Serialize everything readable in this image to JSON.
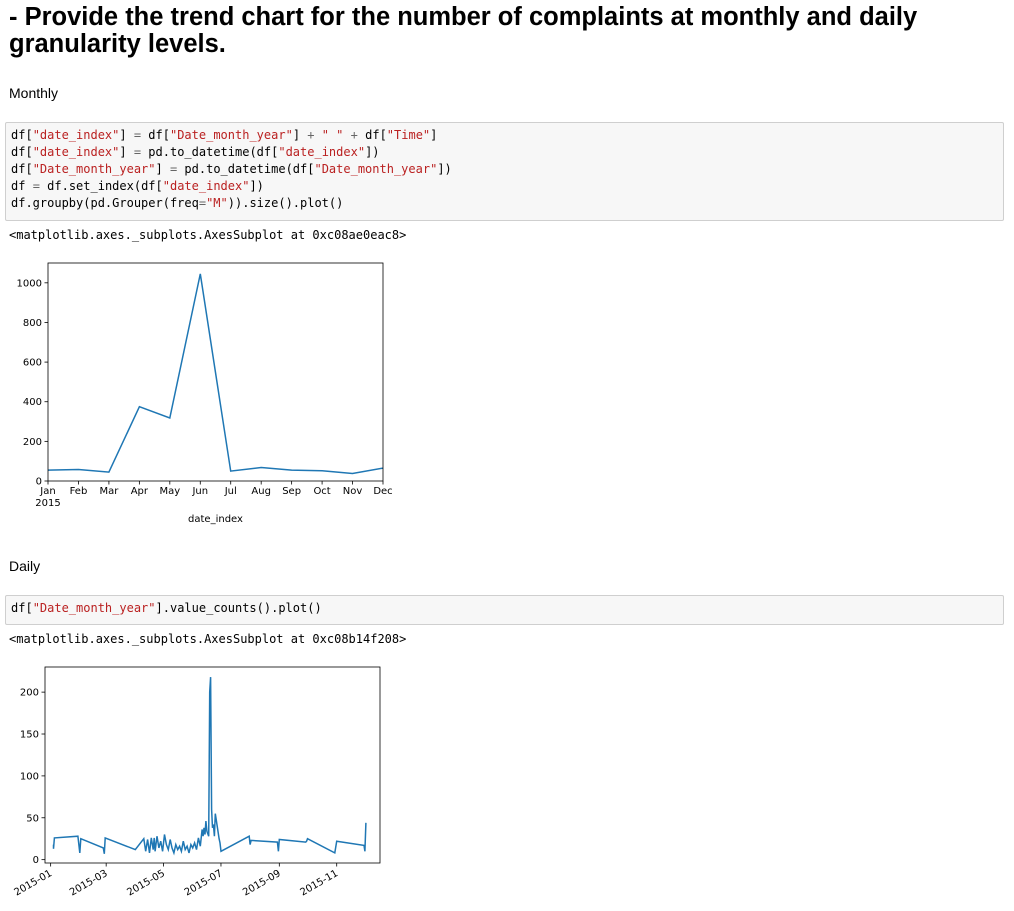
{
  "heading": "- Provide the trend chart for the number of complaints at monthly and daily granularity levels.",
  "sections": {
    "monthly_label": "Monthly",
    "daily_label": "Daily"
  },
  "cells": {
    "monthly_code": [
      [
        {
          "t": "df[",
          "c": ""
        },
        {
          "t": "\"date_index\"",
          "c": "s"
        },
        {
          "t": "] ",
          "c": ""
        },
        {
          "t": "=",
          "c": "o"
        },
        {
          "t": " df[",
          "c": ""
        },
        {
          "t": "\"Date_month_year\"",
          "c": "s"
        },
        {
          "t": "] ",
          "c": ""
        },
        {
          "t": "+",
          "c": "o"
        },
        {
          "t": " ",
          "c": ""
        },
        {
          "t": "\" \"",
          "c": "s"
        },
        {
          "t": " ",
          "c": ""
        },
        {
          "t": "+",
          "c": "o"
        },
        {
          "t": " df[",
          "c": ""
        },
        {
          "t": "\"Time\"",
          "c": "s"
        },
        {
          "t": "]",
          "c": ""
        }
      ],
      [
        {
          "t": "df[",
          "c": ""
        },
        {
          "t": "\"date_index\"",
          "c": "s"
        },
        {
          "t": "] ",
          "c": ""
        },
        {
          "t": "=",
          "c": "o"
        },
        {
          "t": " pd.to_datetime(df[",
          "c": ""
        },
        {
          "t": "\"date_index\"",
          "c": "s"
        },
        {
          "t": "])",
          "c": ""
        }
      ],
      [
        {
          "t": "df[",
          "c": ""
        },
        {
          "t": "\"Date_month_year\"",
          "c": "s"
        },
        {
          "t": "] ",
          "c": ""
        },
        {
          "t": "=",
          "c": "o"
        },
        {
          "t": " pd.to_datetime(df[",
          "c": ""
        },
        {
          "t": "\"Date_month_year\"",
          "c": "s"
        },
        {
          "t": "])",
          "c": ""
        }
      ],
      [
        {
          "t": "df ",
          "c": ""
        },
        {
          "t": "=",
          "c": "o"
        },
        {
          "t": " df.set_index(df[",
          "c": ""
        },
        {
          "t": "\"date_index\"",
          "c": "s"
        },
        {
          "t": "])",
          "c": ""
        }
      ],
      [
        {
          "t": "df.groupby(pd.Grouper(freq",
          "c": ""
        },
        {
          "t": "=",
          "c": "o"
        },
        {
          "t": "\"M\"",
          "c": "s"
        },
        {
          "t": ")).size().plot()",
          "c": ""
        }
      ]
    ],
    "monthly_output": "<matplotlib.axes._subplots.AxesSubplot at 0xc08ae0eac8>",
    "daily_code": [
      [
        {
          "t": "df[",
          "c": ""
        },
        {
          "t": "\"Date_month_year\"",
          "c": "s"
        },
        {
          "t": "].value_counts().plot()",
          "c": ""
        }
      ]
    ],
    "daily_output": "<matplotlib.axes._subplots.AxesSubplot at 0xc08b14f208>"
  },
  "colors": {
    "line": "#1f77b4",
    "string": "#ba2121",
    "operator": "#666666"
  },
  "chart_data": [
    {
      "type": "line",
      "xlabel": "date_index",
      "x": [
        "Jan",
        "Feb",
        "Mar",
        "Apr",
        "May",
        "Jun",
        "Jul",
        "Aug",
        "Sep",
        "Oct",
        "Nov",
        "Dec"
      ],
      "x_sublabel": "2015",
      "y": [
        55,
        58,
        45,
        375,
        318,
        1045,
        50,
        68,
        55,
        52,
        38,
        65
      ],
      "ylim": [
        0,
        1100
      ],
      "yticks": [
        0,
        200,
        400,
        600,
        800,
        1000
      ],
      "grid": false
    },
    {
      "type": "line",
      "xlabel": "",
      "xlim": [
        "2014-12-26",
        "2015-12-17"
      ],
      "xticks": [
        "2015-01",
        "2015-03",
        "2015-05",
        "2015-07",
        "2015-09",
        "2015-11"
      ],
      "ylim": [
        -4,
        230
      ],
      "yticks": [
        0,
        50,
        100,
        150,
        200
      ],
      "grid": false,
      "points": [
        [
          "2015-01-04",
          18
        ],
        [
          "2015-01-04",
          13
        ],
        [
          "2015-01-05",
          26
        ],
        [
          "2015-01-30",
          28
        ],
        [
          "2015-02-01",
          8
        ],
        [
          "2015-02-02",
          25
        ],
        [
          "2015-02-26",
          14
        ],
        [
          "2015-02-27",
          7
        ],
        [
          "2015-02-28",
          26
        ],
        [
          "2015-04-01",
          12
        ],
        [
          "2015-04-10",
          25
        ],
        [
          "2015-04-12",
          10
        ],
        [
          "2015-04-14",
          24
        ],
        [
          "2015-04-16",
          8
        ],
        [
          "2015-04-18",
          26
        ],
        [
          "2015-04-20",
          12
        ],
        [
          "2015-04-21",
          26
        ],
        [
          "2015-04-22",
          10
        ],
        [
          "2015-04-24",
          28
        ],
        [
          "2015-04-26",
          14
        ],
        [
          "2015-04-28",
          22
        ],
        [
          "2015-04-30",
          10
        ],
        [
          "2015-05-02",
          30
        ],
        [
          "2015-05-04",
          18
        ],
        [
          "2015-05-06",
          12
        ],
        [
          "2015-05-08",
          24
        ],
        [
          "2015-05-10",
          14
        ],
        [
          "2015-05-12",
          8
        ],
        [
          "2015-05-14",
          18
        ],
        [
          "2015-05-16",
          12
        ],
        [
          "2015-05-18",
          16
        ],
        [
          "2015-05-20",
          10
        ],
        [
          "2015-05-22",
          22
        ],
        [
          "2015-05-24",
          12
        ],
        [
          "2015-05-26",
          16
        ],
        [
          "2015-05-28",
          8
        ],
        [
          "2015-05-30",
          18
        ],
        [
          "2015-06-01",
          14
        ],
        [
          "2015-06-03",
          20
        ],
        [
          "2015-06-05",
          12
        ],
        [
          "2015-06-07",
          26
        ],
        [
          "2015-06-09",
          16
        ],
        [
          "2015-06-11",
          36
        ],
        [
          "2015-06-12",
          28
        ],
        [
          "2015-06-13",
          38
        ],
        [
          "2015-06-14",
          30
        ],
        [
          "2015-06-15",
          46
        ],
        [
          "2015-06-16",
          34
        ],
        [
          "2015-06-18",
          28
        ],
        [
          "2015-06-19",
          200
        ],
        [
          "2015-06-20",
          218
        ],
        [
          "2015-06-21",
          60
        ],
        [
          "2015-06-22",
          38
        ],
        [
          "2015-06-23",
          42
        ],
        [
          "2015-06-24",
          28
        ],
        [
          "2015-06-25",
          55
        ],
        [
          "2015-06-27",
          40
        ],
        [
          "2015-06-29",
          25
        ],
        [
          "2015-06-30",
          20
        ],
        [
          "2015-07-01",
          10
        ],
        [
          "2015-07-31",
          28
        ],
        [
          "2015-08-01",
          18
        ],
        [
          "2015-08-02",
          23
        ],
        [
          "2015-08-30",
          21
        ],
        [
          "2015-08-31",
          10
        ],
        [
          "2015-09-01",
          24
        ],
        [
          "2015-09-29",
          21
        ],
        [
          "2015-09-30",
          22
        ],
        [
          "2015-10-01",
          25
        ],
        [
          "2015-10-30",
          8
        ],
        [
          "2015-11-01",
          22
        ],
        [
          "2015-11-30",
          17
        ],
        [
          "2015-12-01",
          10
        ],
        [
          "2015-12-02",
          44
        ]
      ]
    }
  ]
}
